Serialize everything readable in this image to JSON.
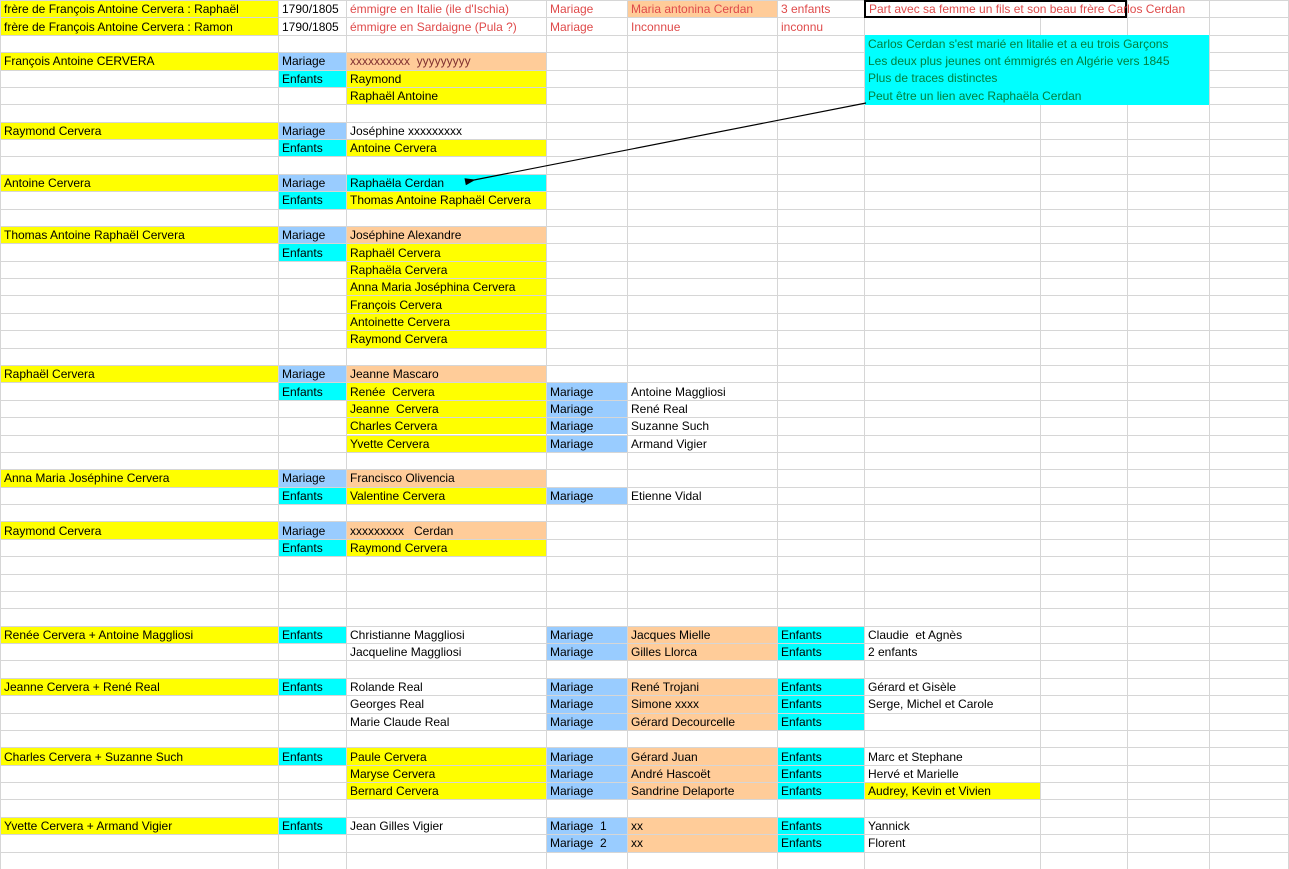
{
  "palette": {
    "yellow": "#FFFF00",
    "blue": "#99CCFF",
    "cyan": "#00FFFF",
    "orange": "#FFCC99",
    "white": "#FFFFFF",
    "red": "#DF4A4A",
    "green": "#008040",
    "darkred": "#803030",
    "black": "#000000",
    "grid": "#D6D6D6"
  },
  "arrow": {
    "meaning": "links note about Carlos Cerdan to cell Raphaëla Cerdan"
  },
  "sheet": {
    "cells": [
      {
        "r": 0,
        "c": "A",
        "t": "frère de François Antoine Cervera : Raphaël",
        "bg": "yellow"
      },
      {
        "r": 0,
        "c": "B",
        "t": "1790/1805"
      },
      {
        "r": 0,
        "c": "C",
        "t": "émmigre en Italie (ile d'Ischia)",
        "fg": "red"
      },
      {
        "r": 0,
        "c": "D",
        "t": "Mariage",
        "fg": "red"
      },
      {
        "r": 0,
        "c": "E",
        "t": "Maria antonina Cerdan",
        "bg": "orange",
        "fg": "red"
      },
      {
        "r": 0,
        "c": "F",
        "t": "3 enfants",
        "fg": "red"
      },
      {
        "r": 0,
        "c": "G",
        "t": "Part avec sa femme un fils et son beau frère Carlos Cerdan",
        "fg": "red",
        "span": 2,
        "kind": "boxed"
      },
      {
        "r": 1,
        "c": "A",
        "t": "frère de François Antoine Cervera : Ramon",
        "bg": "yellow"
      },
      {
        "r": 1,
        "c": "B",
        "t": "1790/1805"
      },
      {
        "r": 1,
        "c": "C",
        "t": "émmigre en Sardaigne (Pula ?)",
        "fg": "red"
      },
      {
        "r": 1,
        "c": "D",
        "t": "Mariage",
        "fg": "red"
      },
      {
        "r": 1,
        "c": "E",
        "t": "Inconnue",
        "fg": "red"
      },
      {
        "r": 1,
        "c": "F",
        "t": "inconnu",
        "fg": "red"
      },
      {
        "r": 2,
        "c": "G",
        "t": "Carlos Cerdan s'est marié en litalie et a eu trois Garçons",
        "bg": "cyan",
        "fg": "green",
        "span": 3,
        "kind": "note"
      },
      {
        "r": 3,
        "c": "G",
        "t": "Les deux plus jeunes ont émmigrés en Algérie vers 1845",
        "bg": "cyan",
        "fg": "green",
        "span": 3,
        "kind": "note"
      },
      {
        "r": 4,
        "c": "G",
        "t": "Plus de traces distinctes",
        "bg": "cyan",
        "fg": "green",
        "span": 3,
        "kind": "note"
      },
      {
        "r": 5,
        "c": "G",
        "t": "Peut être un lien avec Raphaëla Cerdan",
        "bg": "cyan",
        "fg": "green",
        "span": 3,
        "kind": "note"
      },
      {
        "r": 3,
        "c": "A",
        "t": "François Antoine CERVERA",
        "bg": "yellow"
      },
      {
        "r": 3,
        "c": "B",
        "t": "Mariage",
        "bg": "blue"
      },
      {
        "r": 3,
        "c": "C",
        "t": "xxxxxxxxxx  yyyyyyyyy",
        "bg": "orange",
        "fg": "darkred"
      },
      {
        "r": 4,
        "c": "B",
        "t": "Enfants",
        "bg": "cyan"
      },
      {
        "r": 4,
        "c": "C",
        "t": "Raymond",
        "bg": "yellow"
      },
      {
        "r": 5,
        "c": "C",
        "t": "Raphaël Antoine",
        "bg": "yellow"
      },
      {
        "r": 7,
        "c": "A",
        "t": "Raymond Cervera",
        "bg": "yellow"
      },
      {
        "r": 7,
        "c": "B",
        "t": "Mariage",
        "bg": "blue"
      },
      {
        "r": 7,
        "c": "C",
        "t": "Joséphine xxxxxxxxx"
      },
      {
        "r": 8,
        "c": "B",
        "t": "Enfants",
        "bg": "cyan"
      },
      {
        "r": 8,
        "c": "C",
        "t": "Antoine Cervera",
        "bg": "yellow"
      },
      {
        "r": 10,
        "c": "A",
        "t": "Antoine Cervera",
        "bg": "yellow"
      },
      {
        "r": 10,
        "c": "B",
        "t": "Mariage",
        "bg": "blue"
      },
      {
        "r": 10,
        "c": "C",
        "t": "Raphaëla Cerdan",
        "bg": "cyan"
      },
      {
        "r": 11,
        "c": "B",
        "t": "Enfants",
        "bg": "cyan"
      },
      {
        "r": 11,
        "c": "C",
        "t": "Thomas Antoine Raphaël Cervera",
        "bg": "yellow"
      },
      {
        "r": 13,
        "c": "A",
        "t": "Thomas Antoine Raphaël Cervera",
        "bg": "yellow"
      },
      {
        "r": 13,
        "c": "B",
        "t": "Mariage",
        "bg": "blue"
      },
      {
        "r": 13,
        "c": "C",
        "t": "Joséphine Alexandre",
        "bg": "orange"
      },
      {
        "r": 14,
        "c": "B",
        "t": "Enfants",
        "bg": "cyan"
      },
      {
        "r": 14,
        "c": "C",
        "t": "Raphaël Cervera",
        "bg": "yellow"
      },
      {
        "r": 15,
        "c": "C",
        "t": "Raphaëla Cervera",
        "bg": "yellow"
      },
      {
        "r": 16,
        "c": "C",
        "t": "Anna Maria Joséphina Cervera",
        "bg": "yellow"
      },
      {
        "r": 17,
        "c": "C",
        "t": "François Cervera",
        "bg": "yellow"
      },
      {
        "r": 18,
        "c": "C",
        "t": "Antoinette Cervera",
        "bg": "yellow"
      },
      {
        "r": 19,
        "c": "C",
        "t": "Raymond Cervera",
        "bg": "yellow"
      },
      {
        "r": 21,
        "c": "A",
        "t": "Raphaël Cervera",
        "bg": "yellow"
      },
      {
        "r": 21,
        "c": "B",
        "t": "Mariage",
        "bg": "blue"
      },
      {
        "r": 21,
        "c": "C",
        "t": "Jeanne Mascaro",
        "bg": "orange"
      },
      {
        "r": 22,
        "c": "B",
        "t": "Enfants",
        "bg": "cyan"
      },
      {
        "r": 22,
        "c": "C",
        "t": "Renée  Cervera",
        "bg": "yellow"
      },
      {
        "r": 22,
        "c": "D",
        "t": "Mariage",
        "bg": "blue"
      },
      {
        "r": 22,
        "c": "E",
        "t": "Antoine Maggliosi"
      },
      {
        "r": 23,
        "c": "C",
        "t": "Jeanne  Cervera",
        "bg": "yellow"
      },
      {
        "r": 23,
        "c": "D",
        "t": "Mariage",
        "bg": "blue"
      },
      {
        "r": 23,
        "c": "E",
        "t": "René Real"
      },
      {
        "r": 24,
        "c": "C",
        "t": "Charles Cervera",
        "bg": "yellow"
      },
      {
        "r": 24,
        "c": "D",
        "t": "Mariage",
        "bg": "blue"
      },
      {
        "r": 24,
        "c": "E",
        "t": "Suzanne Such"
      },
      {
        "r": 25,
        "c": "C",
        "t": "Yvette Cervera",
        "bg": "yellow"
      },
      {
        "r": 25,
        "c": "D",
        "t": "Mariage",
        "bg": "blue"
      },
      {
        "r": 25,
        "c": "E",
        "t": "Armand Vigier"
      },
      {
        "r": 27,
        "c": "A",
        "t": "Anna Maria Joséphine Cervera",
        "bg": "yellow"
      },
      {
        "r": 27,
        "c": "B",
        "t": "Mariage",
        "bg": "blue"
      },
      {
        "r": 27,
        "c": "C",
        "t": "Francisco Olivencia",
        "bg": "orange"
      },
      {
        "r": 28,
        "c": "B",
        "t": "Enfants",
        "bg": "cyan"
      },
      {
        "r": 28,
        "c": "C",
        "t": "Valentine Cervera",
        "bg": "yellow"
      },
      {
        "r": 28,
        "c": "D",
        "t": "Mariage",
        "bg": "blue"
      },
      {
        "r": 28,
        "c": "E",
        "t": "Etienne Vidal"
      },
      {
        "r": 30,
        "c": "A",
        "t": "Raymond Cervera",
        "bg": "yellow"
      },
      {
        "r": 30,
        "c": "B",
        "t": "Mariage",
        "bg": "blue"
      },
      {
        "r": 30,
        "c": "C",
        "t": "xxxxxxxxx   Cerdan",
        "bg": "orange"
      },
      {
        "r": 31,
        "c": "B",
        "t": "Enfants",
        "bg": "cyan"
      },
      {
        "r": 31,
        "c": "C",
        "t": "Raymond Cervera",
        "bg": "yellow"
      },
      {
        "r": 36,
        "c": "A",
        "t": "Renée Cervera + Antoine Maggliosi",
        "bg": "yellow"
      },
      {
        "r": 36,
        "c": "B",
        "t": "Enfants",
        "bg": "cyan"
      },
      {
        "r": 36,
        "c": "C",
        "t": "Christianne Maggliosi"
      },
      {
        "r": 36,
        "c": "D",
        "t": "Mariage",
        "bg": "blue"
      },
      {
        "r": 36,
        "c": "E",
        "t": "Jacques Mielle",
        "bg": "orange"
      },
      {
        "r": 36,
        "c": "F",
        "t": "Enfants",
        "bg": "cyan"
      },
      {
        "r": 36,
        "c": "G",
        "t": "Claudie  et Agnès"
      },
      {
        "r": 37,
        "c": "C",
        "t": "Jacqueline Maggliosi"
      },
      {
        "r": 37,
        "c": "D",
        "t": "Mariage",
        "bg": "blue"
      },
      {
        "r": 37,
        "c": "E",
        "t": "Gilles Llorca",
        "bg": "orange"
      },
      {
        "r": 37,
        "c": "F",
        "t": "Enfants",
        "bg": "cyan"
      },
      {
        "r": 37,
        "c": "G",
        "t": "2 enfants"
      },
      {
        "r": 39,
        "c": "A",
        "t": "Jeanne Cervera + René Real",
        "bg": "yellow"
      },
      {
        "r": 39,
        "c": "B",
        "t": "Enfants",
        "bg": "cyan"
      },
      {
        "r": 39,
        "c": "C",
        "t": "Rolande Real"
      },
      {
        "r": 39,
        "c": "D",
        "t": "Mariage",
        "bg": "blue"
      },
      {
        "r": 39,
        "c": "E",
        "t": "René Trojani",
        "bg": "orange"
      },
      {
        "r": 39,
        "c": "F",
        "t": "Enfants",
        "bg": "cyan"
      },
      {
        "r": 39,
        "c": "G",
        "t": "Gérard et Gisèle"
      },
      {
        "r": 40,
        "c": "C",
        "t": "Georges Real"
      },
      {
        "r": 40,
        "c": "D",
        "t": "Mariage",
        "bg": "blue"
      },
      {
        "r": 40,
        "c": "E",
        "t": "Simone xxxx",
        "bg": "orange"
      },
      {
        "r": 40,
        "c": "F",
        "t": "Enfants",
        "bg": "cyan"
      },
      {
        "r": 40,
        "c": "G",
        "t": "Serge, Michel et Carole"
      },
      {
        "r": 41,
        "c": "C",
        "t": "Marie Claude Real"
      },
      {
        "r": 41,
        "c": "D",
        "t": "Mariage",
        "bg": "blue"
      },
      {
        "r": 41,
        "c": "E",
        "t": "Gérard Decourcelle",
        "bg": "orange"
      },
      {
        "r": 41,
        "c": "F",
        "t": "Enfants",
        "bg": "cyan"
      },
      {
        "r": 43,
        "c": "A",
        "t": "Charles Cervera + Suzanne Such",
        "bg": "yellow"
      },
      {
        "r": 43,
        "c": "B",
        "t": "Enfants",
        "bg": "cyan"
      },
      {
        "r": 43,
        "c": "C",
        "t": "Paule Cervera",
        "bg": "yellow"
      },
      {
        "r": 43,
        "c": "D",
        "t": "Mariage",
        "bg": "blue"
      },
      {
        "r": 43,
        "c": "E",
        "t": "Gérard Juan",
        "bg": "orange"
      },
      {
        "r": 43,
        "c": "F",
        "t": "Enfants",
        "bg": "cyan"
      },
      {
        "r": 43,
        "c": "G",
        "t": "Marc et Stephane"
      },
      {
        "r": 44,
        "c": "C",
        "t": "Maryse Cervera",
        "bg": "yellow"
      },
      {
        "r": 44,
        "c": "D",
        "t": "Mariage",
        "bg": "blue"
      },
      {
        "r": 44,
        "c": "E",
        "t": "André Hascoët",
        "bg": "orange"
      },
      {
        "r": 44,
        "c": "F",
        "t": "Enfants",
        "bg": "cyan"
      },
      {
        "r": 44,
        "c": "G",
        "t": "Hervé et Marielle"
      },
      {
        "r": 45,
        "c": "C",
        "t": "Bernard Cervera",
        "bg": "yellow"
      },
      {
        "r": 45,
        "c": "D",
        "t": "Mariage",
        "bg": "blue"
      },
      {
        "r": 45,
        "c": "E",
        "t": "Sandrine Delaporte",
        "bg": "orange"
      },
      {
        "r": 45,
        "c": "F",
        "t": "Enfants",
        "bg": "cyan"
      },
      {
        "r": 45,
        "c": "G",
        "t": "Audrey, Kevin et Vivien",
        "bg": "yellow"
      },
      {
        "r": 47,
        "c": "A",
        "t": "Yvette Cervera + Armand Vigier",
        "bg": "yellow"
      },
      {
        "r": 47,
        "c": "B",
        "t": "Enfants",
        "bg": "cyan"
      },
      {
        "r": 47,
        "c": "C",
        "t": "Jean Gilles Vigier"
      },
      {
        "r": 47,
        "c": "D",
        "t": "Mariage  1",
        "bg": "blue"
      },
      {
        "r": 47,
        "c": "E",
        "t": "xx",
        "bg": "orange"
      },
      {
        "r": 47,
        "c": "F",
        "t": "Enfants",
        "bg": "cyan"
      },
      {
        "r": 47,
        "c": "G",
        "t": "Yannick"
      },
      {
        "r": 48,
        "c": "D",
        "t": "Mariage  2",
        "bg": "blue"
      },
      {
        "r": 48,
        "c": "E",
        "t": "xx",
        "bg": "orange"
      },
      {
        "r": 48,
        "c": "F",
        "t": "Enfants",
        "bg": "cyan"
      },
      {
        "r": 48,
        "c": "G",
        "t": "Florent"
      }
    ]
  }
}
